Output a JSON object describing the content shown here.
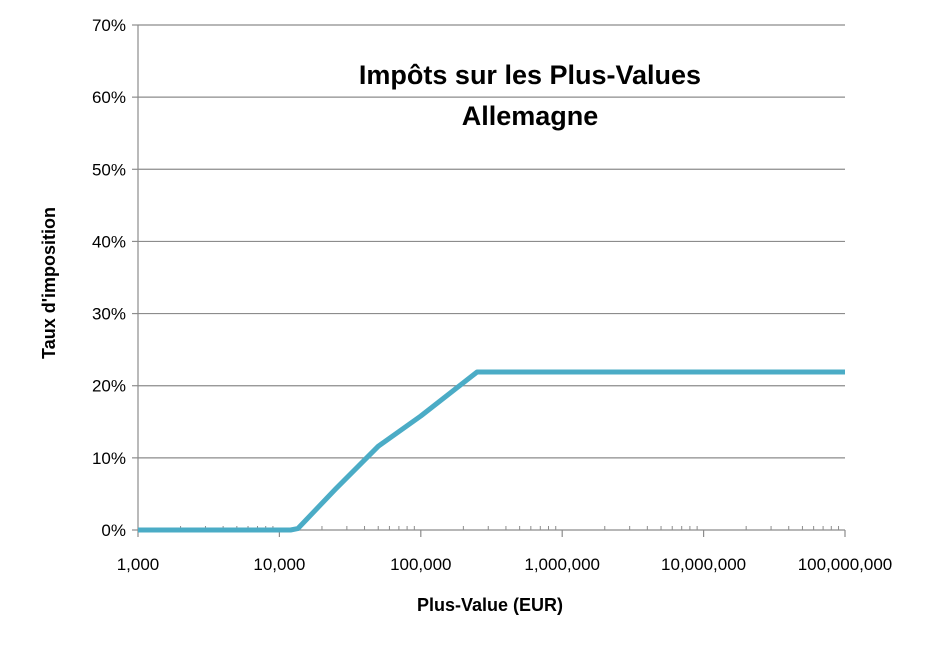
{
  "chart_data": {
    "type": "line",
    "title": "Impôts sur les Plus-Values",
    "subtitle": "Allemagne",
    "xlabel": "Plus-Value (EUR)",
    "ylabel": "Taux d'imposition",
    "x_scale": "log",
    "xlim": [
      1000,
      100000000
    ],
    "ylim": [
      0,
      0.7
    ],
    "grid": true,
    "x_ticks": [
      1000,
      10000,
      100000,
      1000000,
      10000000,
      100000000
    ],
    "x_tick_labels": [
      "1,000",
      "10,000",
      "100,000",
      "1,000,000",
      "10,000,000",
      "100,000,000"
    ],
    "y_ticks": [
      0,
      0.1,
      0.2,
      0.3,
      0.4,
      0.5,
      0.6,
      0.7
    ],
    "y_tick_labels": [
      "0%",
      "10%",
      "20%",
      "30%",
      "40%",
      "50%",
      "60%",
      "70%"
    ],
    "series": [
      {
        "color": "#4bacc6",
        "x": [
          1000,
          10000,
          12000,
          13500,
          25000,
          50000,
          100000,
          250000,
          1000000,
          10000000,
          100000000
        ],
        "y": [
          0,
          0,
          0,
          0.002,
          0.057,
          0.116,
          0.158,
          0.219,
          0.219,
          0.219,
          0.219
        ]
      }
    ]
  }
}
